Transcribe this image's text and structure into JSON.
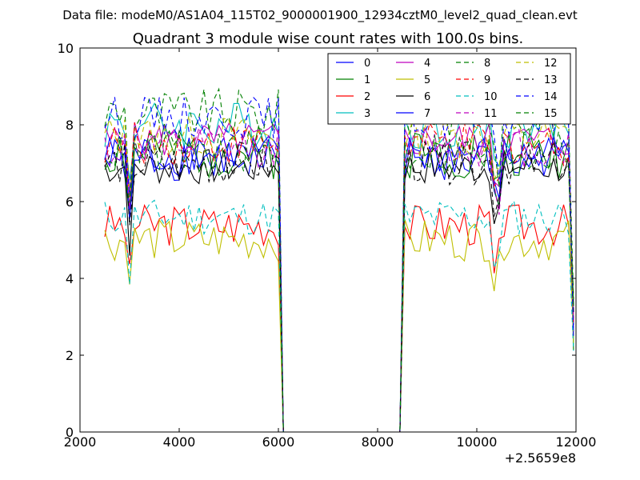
{
  "figure": {
    "suptitle": "Data file: modeM0/AS1A04_115T02_9000001900_12934cztM0_level2_quad_clean.evt"
  },
  "chart_data": {
    "type": "line",
    "title": "Quadrant 3 module wise count rates with 100.0s bins.",
    "xlabel": "",
    "ylabel": "",
    "x_offset_label": "+2.5659e8",
    "xlim": [
      2000,
      12000
    ],
    "ylim": [
      0,
      10
    ],
    "x_ticks": [
      2000,
      4000,
      6000,
      8000,
      10000,
      12000
    ],
    "y_ticks": [
      0,
      2,
      4,
      6,
      8,
      10
    ],
    "x_tick_labels": [
      "2000",
      "4000",
      "6000",
      "8000",
      "10000",
      "12000"
    ],
    "y_tick_labels": [
      "0",
      "2",
      "4",
      "6",
      "8",
      "10"
    ],
    "grid": false,
    "legend_placement": "top-right",
    "legend_columns": 4,
    "bin_seconds": 100,
    "segments": [
      {
        "start": 2500,
        "end": 6000
      },
      {
        "start": 8550,
        "end": 11850
      }
    ],
    "gap": {
      "drop_at": 6100,
      "rise_at": 8450,
      "value": 0
    },
    "series": [
      {
        "name": "0",
        "color": "#0000ff",
        "dash": "solid",
        "mean": 7.1,
        "noise": 0.35,
        "seed": 1
      },
      {
        "name": "1",
        "color": "#008000",
        "dash": "solid",
        "mean": 7.3,
        "noise": 0.45,
        "seed": 2
      },
      {
        "name": "2",
        "color": "#ff0000",
        "dash": "solid",
        "mean": 5.4,
        "noise": 0.35,
        "seed": 3
      },
      {
        "name": "3",
        "color": "#00bfbf",
        "dash": "solid",
        "mean": 8.0,
        "noise": 0.4,
        "seed": 4
      },
      {
        "name": "4",
        "color": "#bf00bf",
        "dash": "solid",
        "mean": 7.6,
        "noise": 0.3,
        "seed": 5
      },
      {
        "name": "5",
        "color": "#bfbf00",
        "dash": "solid",
        "mean": 5.0,
        "noise": 0.35,
        "seed": 6
      },
      {
        "name": "6",
        "color": "#000000",
        "dash": "solid",
        "mean": 6.9,
        "noise": 0.3,
        "seed": 7
      },
      {
        "name": "7",
        "color": "#0000ff",
        "dash": "solid",
        "mean": 7.2,
        "noise": 0.35,
        "seed": 8
      },
      {
        "name": "8",
        "color": "#008000",
        "dash": "dashed",
        "mean": 8.3,
        "noise": 0.4,
        "seed": 9
      },
      {
        "name": "9",
        "color": "#ff0000",
        "dash": "dashed",
        "mean": 7.5,
        "noise": 0.35,
        "seed": 10
      },
      {
        "name": "10",
        "color": "#00bfbf",
        "dash": "dashed",
        "mean": 5.6,
        "noise": 0.3,
        "seed": 11
      },
      {
        "name": "11",
        "color": "#bf00bf",
        "dash": "dashed",
        "mean": 7.4,
        "noise": 0.35,
        "seed": 12
      },
      {
        "name": "12",
        "color": "#bfbf00",
        "dash": "dashed",
        "mean": 7.7,
        "noise": 0.35,
        "seed": 13
      },
      {
        "name": "13",
        "color": "#000000",
        "dash": "dashed",
        "mean": 7.0,
        "noise": 0.35,
        "seed": 14
      },
      {
        "name": "14",
        "color": "#0000ff",
        "dash": "dashed",
        "mean": 8.2,
        "noise": 0.35,
        "seed": 15
      },
      {
        "name": "15",
        "color": "#008000",
        "dash": "dashed",
        "mean": 7.3,
        "noise": 0.35,
        "seed": 16
      }
    ]
  }
}
